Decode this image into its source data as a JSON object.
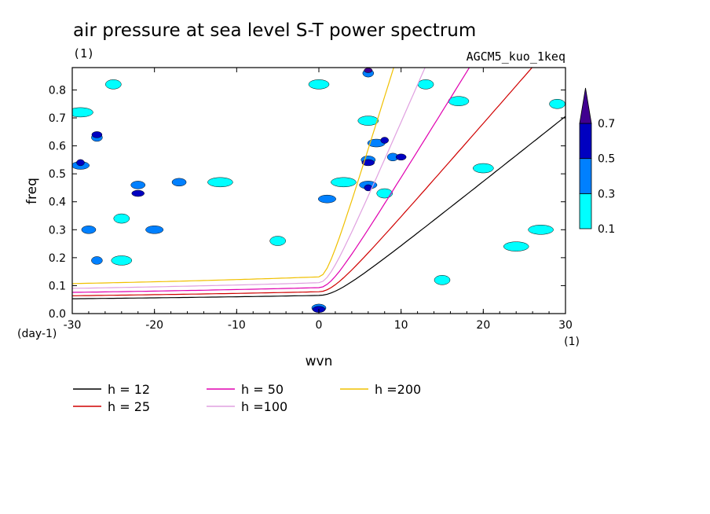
{
  "chart_data": {
    "type": "contour",
    "title": "air pressure at sea level S-T power spectrum",
    "subtitle_left": "(1)",
    "subtitle_right": "AGCM5_kuo_1keq",
    "xlabel": "wvn",
    "ylabel": "freq",
    "x_unit": "(1)",
    "y_unit": "(day-1)",
    "xlim": [
      -30,
      30
    ],
    "ylim": [
      0,
      0.88
    ],
    "x_ticks": [
      -30,
      -20,
      -10,
      0,
      10,
      20,
      30
    ],
    "x_tick_labels": [
      "-30",
      "-20",
      "-10",
      "0",
      "10",
      "20",
      "30"
    ],
    "y_ticks": [
      0,
      0.1,
      0.2,
      0.3,
      0.4,
      0.5,
      0.6,
      0.7,
      0.8
    ],
    "y_tick_labels": [
      "0.0",
      "0.1",
      "0.2",
      "0.3",
      "0.4",
      "0.5",
      "0.6",
      "0.7",
      "0.8"
    ],
    "colorbar": {
      "levels": [
        0.1,
        0.3,
        0.5,
        0.7
      ],
      "level_labels": [
        "0.1",
        "0.3",
        "0.5",
        "0.7"
      ],
      "colors": [
        "#00ffff",
        "#0080ff",
        "#0000c0",
        "#400090"
      ]
    },
    "dispersion_curves": [
      {
        "label": "h = 12",
        "h": 12,
        "color": "#000000"
      },
      {
        "label": "h = 25",
        "h": 25,
        "color": "#d00000"
      },
      {
        "label": "h = 50",
        "h": 50,
        "color": "#e000b0"
      },
      {
        "label": "h =100",
        "h": 100,
        "color": "#e0a0e0"
      },
      {
        "label": "h =200",
        "h": 200,
        "color": "#f0c000"
      }
    ],
    "contour_patches": [
      {
        "x": -27,
        "y": 0.63,
        "level": 1
      },
      {
        "x": -27,
        "y": 0.64,
        "level": 2
      },
      {
        "x": -29,
        "y": 0.53,
        "level": 1
      },
      {
        "x": -29,
        "y": 0.54,
        "level": 2
      },
      {
        "x": -22,
        "y": 0.46,
        "level": 1
      },
      {
        "x": -22,
        "y": 0.43,
        "level": 2
      },
      {
        "x": -24,
        "y": 0.34,
        "level": 0
      },
      {
        "x": -28,
        "y": 0.3,
        "level": 1
      },
      {
        "x": -20,
        "y": 0.3,
        "level": 1
      },
      {
        "x": -27,
        "y": 0.19,
        "level": 1
      },
      {
        "x": -24,
        "y": 0.19,
        "level": 0
      },
      {
        "x": -29,
        "y": 0.72,
        "level": 0
      },
      {
        "x": -25,
        "y": 0.82,
        "level": 0
      },
      {
        "x": -17,
        "y": 0.47,
        "level": 1
      },
      {
        "x": -12,
        "y": 0.47,
        "level": 0
      },
      {
        "x": -5,
        "y": 0.26,
        "level": 0
      },
      {
        "x": 0,
        "y": 0.82,
        "level": 0
      },
      {
        "x": 1,
        "y": 0.41,
        "level": 1
      },
      {
        "x": 6,
        "y": 0.86,
        "level": 1
      },
      {
        "x": 6,
        "y": 0.87,
        "level": 3
      },
      {
        "x": 7,
        "y": 0.61,
        "level": 1
      },
      {
        "x": 8,
        "y": 0.62,
        "level": 2
      },
      {
        "x": 6,
        "y": 0.55,
        "level": 1
      },
      {
        "x": 6,
        "y": 0.54,
        "level": 2
      },
      {
        "x": 9,
        "y": 0.56,
        "level": 1
      },
      {
        "x": 10,
        "y": 0.56,
        "level": 2
      },
      {
        "x": 6,
        "y": 0.46,
        "level": 1
      },
      {
        "x": 6,
        "y": 0.45,
        "level": 2
      },
      {
        "x": 6,
        "y": 0.69,
        "level": 0
      },
      {
        "x": 3,
        "y": 0.47,
        "level": 0
      },
      {
        "x": 8,
        "y": 0.43,
        "level": 0
      },
      {
        "x": 0,
        "y": 0.02,
        "level": 1
      },
      {
        "x": 0,
        "y": 0.015,
        "level": 2
      },
      {
        "x": 13,
        "y": 0.82,
        "level": 0
      },
      {
        "x": 17,
        "y": 0.76,
        "level": 0
      },
      {
        "x": 27,
        "y": 0.3,
        "level": 0
      },
      {
        "x": 29,
        "y": 0.75,
        "level": 0
      },
      {
        "x": 20,
        "y": 0.52,
        "level": 0
      },
      {
        "x": 24,
        "y": 0.24,
        "level": 0
      },
      {
        "x": 15,
        "y": 0.12,
        "level": 0
      }
    ]
  }
}
